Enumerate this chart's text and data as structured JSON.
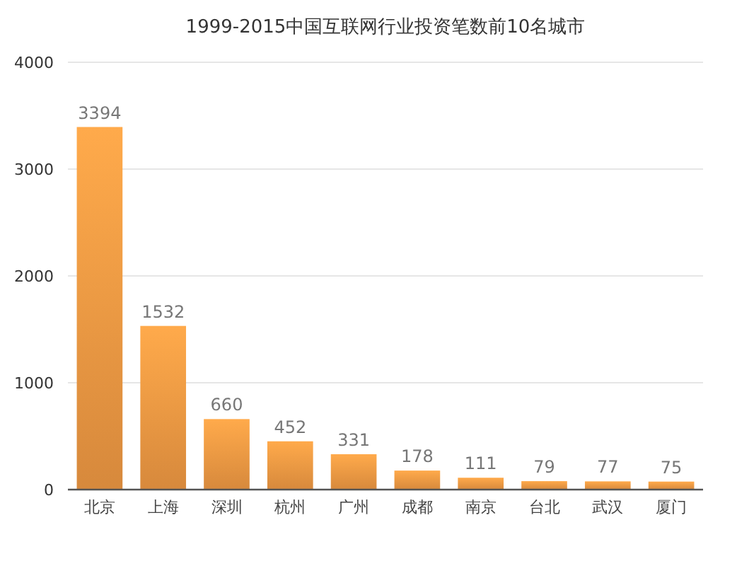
{
  "chart_data": {
    "type": "bar",
    "title": "1999-2015中国互联网行业投资笔数前10名城市",
    "categories": [
      "北京",
      "上海",
      "深圳",
      "杭州",
      "广州",
      "成都",
      "南京",
      "台北",
      "武汉",
      "厦门"
    ],
    "values": [
      3394,
      1532,
      660,
      452,
      331,
      178,
      111,
      79,
      77,
      75
    ],
    "color": "#eb9642",
    "ylim": [
      0,
      4000
    ],
    "yticks": [
      0,
      1000,
      2000,
      3000,
      4000
    ],
    "grid": "y",
    "data_labels": true
  }
}
